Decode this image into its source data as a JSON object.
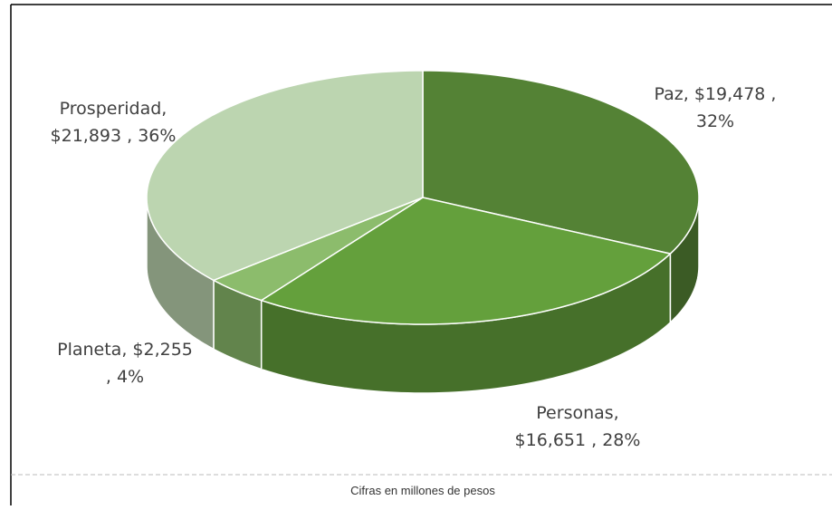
{
  "chart_data": {
    "type": "pie3d",
    "values": [
      19478,
      16651,
      2255,
      21893
    ],
    "labels": [
      [
        "Paz,  $19,478 ,",
        "32%"
      ],
      [
        "Personas,",
        "$16,651 , 28%"
      ],
      [
        "Planeta,  $2,255",
        ", 4%"
      ],
      [
        "Prosperidad,",
        "$21,893 , 36%"
      ]
    ],
    "colors": [
      "#548235",
      "#64a03c",
      "#8cbc6c",
      "#bcd5b0"
    ],
    "footnote": "Cifras en millones de pesos"
  }
}
